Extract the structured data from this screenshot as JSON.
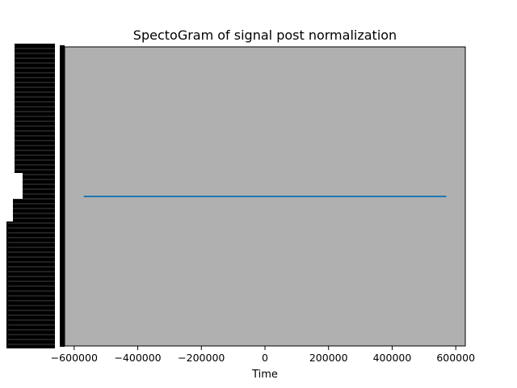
{
  "chart_data": {
    "type": "line",
    "title": "SpectoGram of signal post normalization",
    "xlabel": "Time",
    "ylabel": "",
    "xlim": [
      -630000,
      630000
    ],
    "xticks": [
      -600000,
      -400000,
      -200000,
      0,
      200000,
      400000,
      600000
    ],
    "xtick_labels": [
      "−600000",
      "−400000",
      "−200000",
      "0",
      "200000",
      "400000",
      "600000"
    ],
    "ylim": [
      -1,
      1
    ],
    "y_tick_labels_overlapping": true,
    "grid": false,
    "legend": "none",
    "series": [
      {
        "x": [
          -570000,
          570000
        ],
        "y": [
          0,
          0
        ],
        "color": "#1f77b4"
      }
    ],
    "colors": {
      "plot_background": "#b0b0b0",
      "line": "#1f77b4",
      "frame": "#000000"
    }
  }
}
